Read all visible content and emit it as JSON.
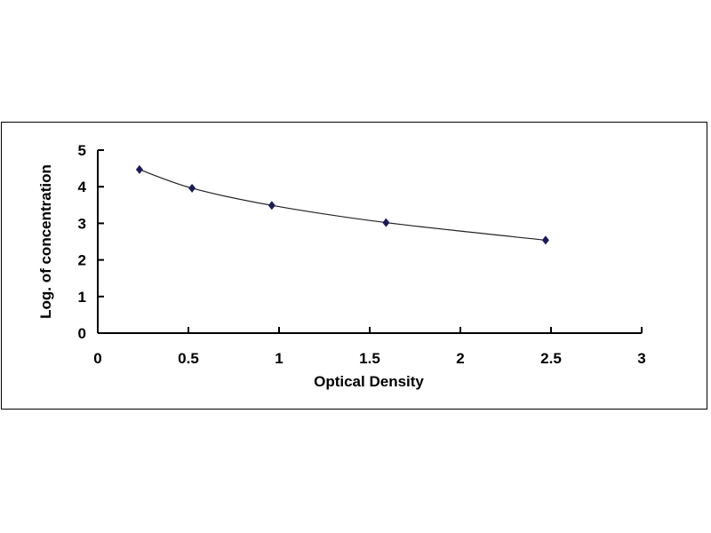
{
  "chart_data": {
    "type": "scatter",
    "title": "",
    "xlabel": "Optical Density",
    "ylabel": "Log. of  concentration",
    "xlim": [
      0,
      3
    ],
    "ylim": [
      0,
      5
    ],
    "xticks": [
      "0",
      "0.5",
      "1",
      "1.5",
      "2",
      "2.5",
      "3"
    ],
    "yticks": [
      "0",
      "1",
      "2",
      "3",
      "4",
      "5"
    ],
    "grid": false,
    "trendline": "smooth curve",
    "marker": "diamond",
    "color": "#1a1a5a",
    "x": [
      0.23,
      0.52,
      0.96,
      1.59,
      2.47
    ],
    "y": [
      4.47,
      3.96,
      3.49,
      3.02,
      2.54
    ]
  }
}
